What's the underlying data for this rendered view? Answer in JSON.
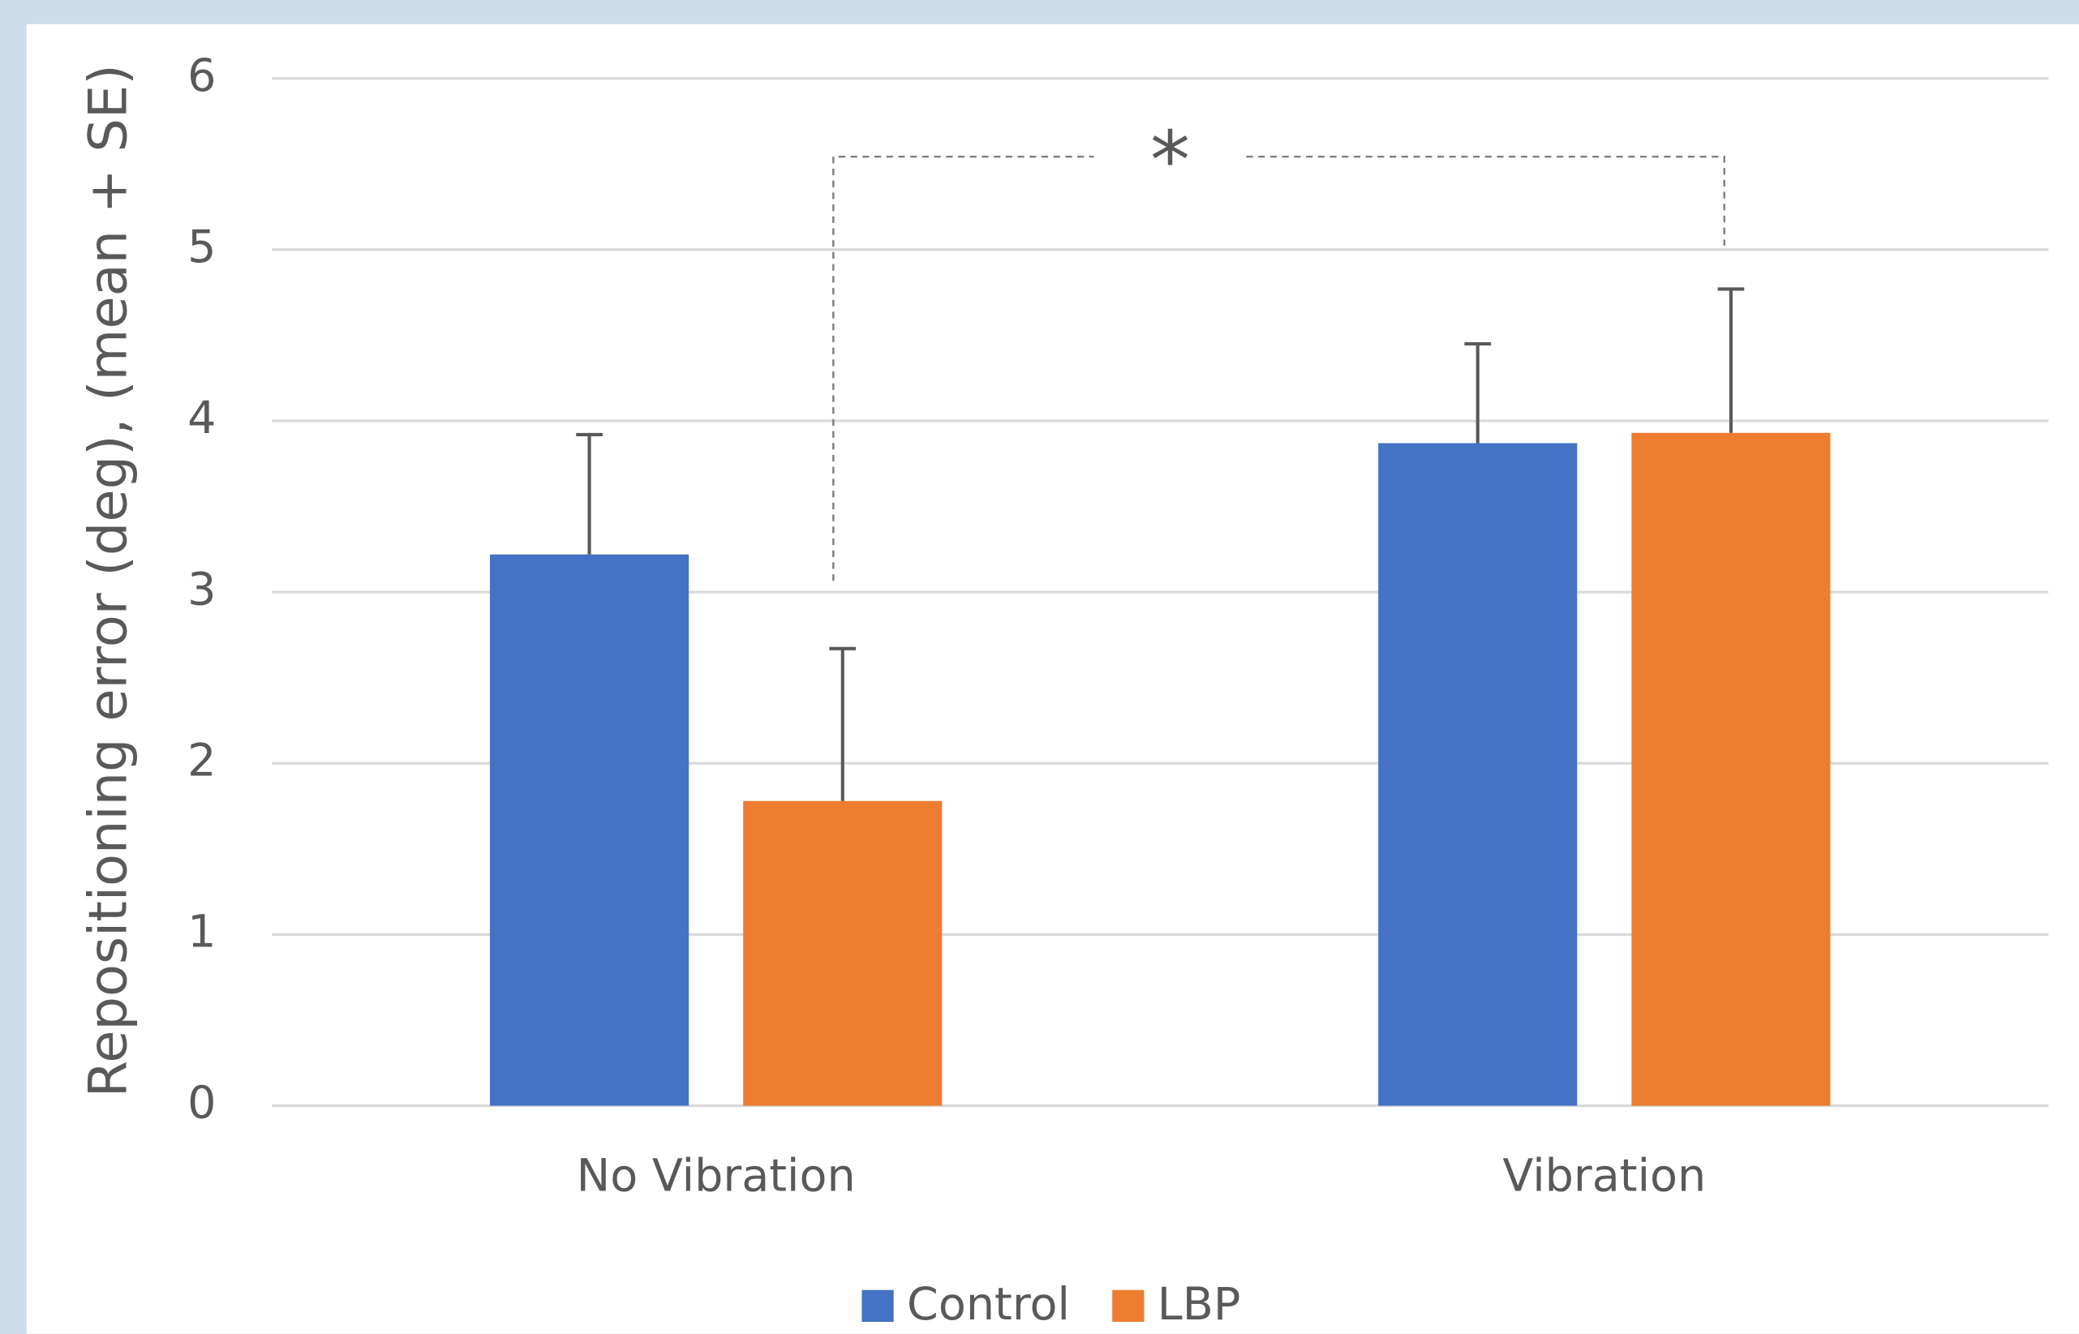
{
  "chart_data": {
    "type": "bar",
    "y_label": "Repositioning error (deg), (mean + SE)",
    "categories": [
      "No Vibration",
      "Vibration"
    ],
    "series": [
      {
        "name": "Control",
        "color": "#4472c4",
        "values": [
          3.22,
          3.87
        ],
        "errors": [
          0.7,
          0.58
        ]
      },
      {
        "name": "LBP",
        "color": "#ed7d31",
        "values": [
          1.78,
          3.93
        ],
        "errors": [
          0.89,
          0.84
        ]
      }
    ],
    "annotation": "*",
    "ylim": [
      0,
      6
    ],
    "yticks": [
      0,
      1,
      2,
      3,
      4,
      5,
      6
    ],
    "grid": true,
    "legend": "bottom"
  }
}
